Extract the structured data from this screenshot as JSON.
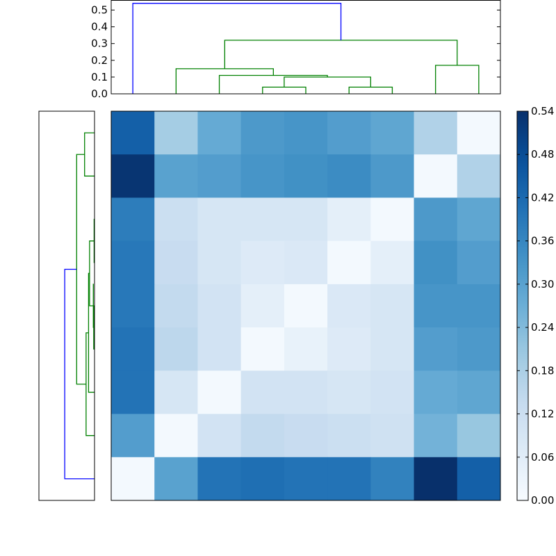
{
  "chart_data": [
    {
      "type": "heatmap",
      "rows": 9,
      "cols": 9,
      "colormap": "Blues",
      "values": [
        [
          0.44,
          0.19,
          0.28,
          0.32,
          0.33,
          0.31,
          0.29,
          0.17,
          0.01
        ],
        [
          0.53,
          0.3,
          0.31,
          0.33,
          0.34,
          0.35,
          0.32,
          0.01,
          0.17
        ],
        [
          0.38,
          0.12,
          0.09,
          0.09,
          0.09,
          0.05,
          0.01,
          0.32,
          0.29
        ],
        [
          0.39,
          0.13,
          0.09,
          0.07,
          0.08,
          0.01,
          0.05,
          0.34,
          0.31
        ],
        [
          0.39,
          0.14,
          0.1,
          0.05,
          0.01,
          0.08,
          0.09,
          0.33,
          0.33
        ],
        [
          0.4,
          0.15,
          0.1,
          0.01,
          0.04,
          0.07,
          0.09,
          0.31,
          0.32
        ],
        [
          0.4,
          0.09,
          0.01,
          0.1,
          0.1,
          0.09,
          0.1,
          0.28,
          0.29
        ],
        [
          0.31,
          0.01,
          0.1,
          0.14,
          0.13,
          0.12,
          0.11,
          0.26,
          0.21
        ],
        [
          0.01,
          0.3,
          0.4,
          0.41,
          0.4,
          0.4,
          0.37,
          0.54,
          0.44
        ]
      ],
      "colorbar": {
        "min": 0.0,
        "max": 0.54,
        "ticks": [
          "0.00",
          "0.06",
          "0.12",
          "0.18",
          "0.24",
          "0.30",
          "0.36",
          "0.42",
          "0.48",
          "0.54"
        ]
      },
      "colors": {
        "low": "#f7fbff",
        "high": "#08306b"
      }
    },
    {
      "type": "dendrogram",
      "orientation": "top",
      "leaves": 9,
      "ylim": [
        0,
        0.56
      ],
      "yticks": [
        "0.0",
        "0.1",
        "0.2",
        "0.3",
        "0.4",
        "0.5"
      ],
      "links": [
        {
          "left": 3.5,
          "right": 4.5,
          "height": 0.04,
          "lh": 0,
          "rh": 0,
          "color": "#008000"
        },
        {
          "left": 5.5,
          "right": 6.5,
          "height": 0.04,
          "lh": 0,
          "rh": 0,
          "color": "#008000"
        },
        {
          "left": 4.0,
          "right": 6.0,
          "height": 0.1,
          "lh": 0.04,
          "rh": 0.04,
          "color": "#008000"
        },
        {
          "left": 2.5,
          "right": 5.0,
          "height": 0.11,
          "lh": 0,
          "rh": 0.1,
          "color": "#008000"
        },
        {
          "left": 1.5,
          "right": 3.75,
          "height": 0.15,
          "lh": 0,
          "rh": 0.11,
          "color": "#008000"
        },
        {
          "left": 7.5,
          "right": 8.5,
          "height": 0.17,
          "lh": 0,
          "rh": 0,
          "color": "#008000"
        },
        {
          "left": 2.625,
          "right": 8.0,
          "height": 0.32,
          "lh": 0.15,
          "rh": 0.17,
          "color": "#008000"
        },
        {
          "left": 0.5,
          "right": 5.3125,
          "height": 0.54,
          "lh": 0,
          "rh": 0.32,
          "color": "#0000ff"
        }
      ]
    },
    {
      "type": "dendrogram",
      "orientation": "left",
      "leaves": 9,
      "xlim": [
        0,
        0.56
      ],
      "links": [
        {
          "a": 2.5,
          "b": 3.5,
          "height": 0.004,
          "ah": 0,
          "bh": 0,
          "color": "#008000"
        },
        {
          "a": 4.5,
          "b": 5.5,
          "height": 0.008,
          "ah": 0,
          "bh": 0,
          "color": "#008000"
        },
        {
          "a": 4.0,
          "b": 5.0,
          "height": 0.012,
          "ah": 0.008,
          "bh": 0.008,
          "color": "#008000"
        },
        {
          "a": 3.0,
          "b": 4.5,
          "height": 0.05,
          "ah": 0.004,
          "bh": 0.012,
          "color": "#008000"
        },
        {
          "a": 3.75,
          "b": 6.5,
          "height": 0.06,
          "ah": 0.05,
          "bh": 0,
          "color": "#008000"
        },
        {
          "a": 5.125,
          "b": 7.5,
          "height": 0.085,
          "ah": 0.06,
          "bh": 0,
          "color": "#008000"
        },
        {
          "a": 0.5,
          "b": 1.5,
          "height": 0.1,
          "ah": 0,
          "bh": 0,
          "color": "#008000"
        },
        {
          "a": 1.0,
          "b": 6.3125,
          "height": 0.18,
          "ah": 0.1,
          "bh": 0.085,
          "color": "#008000"
        },
        {
          "a": 3.65625,
          "b": 8.5,
          "height": 0.3,
          "ah": 0.18,
          "bh": 0,
          "color": "#0000ff"
        }
      ]
    }
  ]
}
